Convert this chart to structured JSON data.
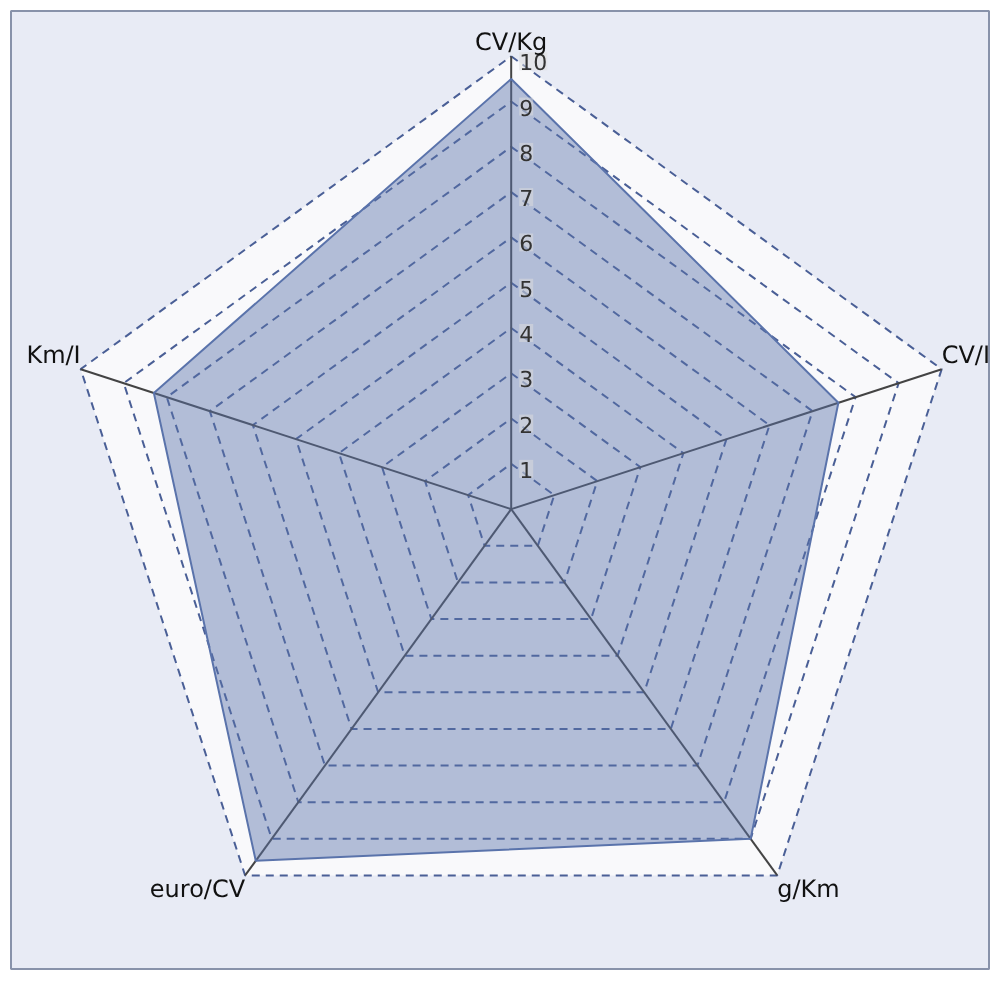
{
  "chart_data": {
    "type": "radar",
    "categories": [
      "CV/Kg",
      "CV/I",
      "g/Km",
      "euro/CV",
      "Km/I"
    ],
    "series": [
      {
        "color": "#5a73ab",
        "values": [
          9.5,
          7.6,
          9.0,
          9.6,
          8.3
        ]
      }
    ],
    "ylim": [
      0,
      10
    ],
    "yticks": [
      1,
      2,
      3,
      4,
      5,
      6,
      7,
      8,
      9,
      10
    ],
    "grid": true,
    "marker": "none",
    "line_style": "solid"
  }
}
